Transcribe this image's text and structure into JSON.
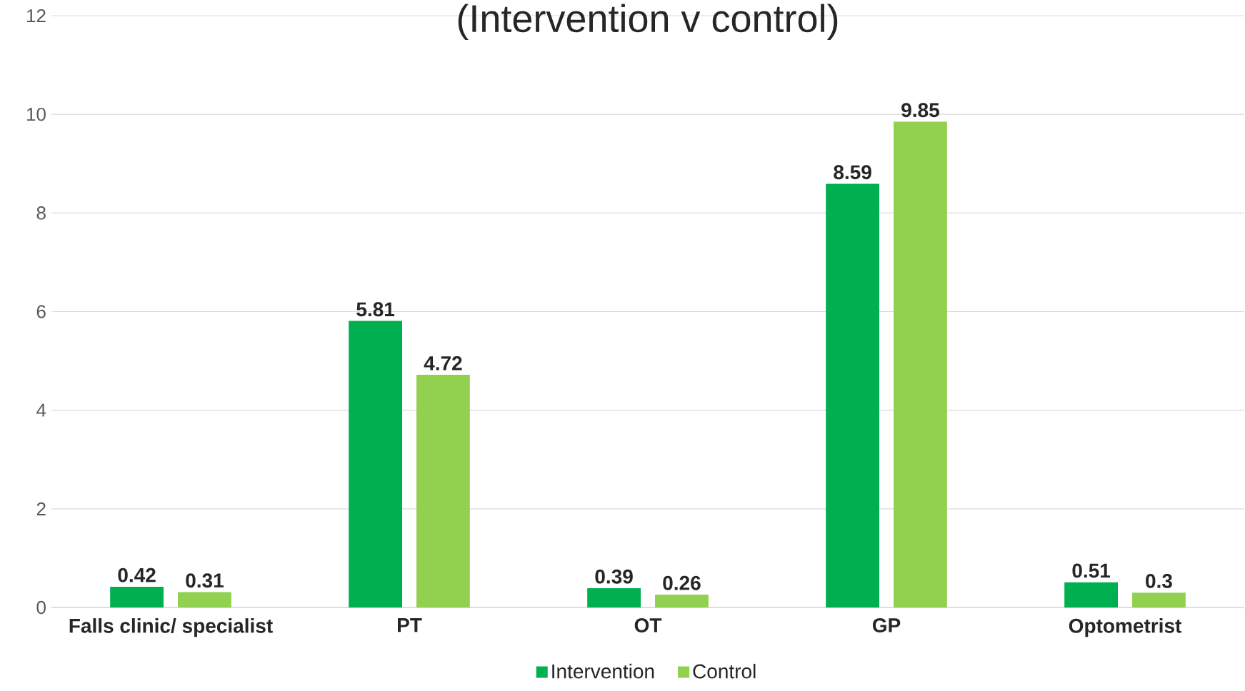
{
  "chart_data": {
    "type": "bar",
    "title": "(Intervention v control)",
    "categories": [
      "Falls clinic/ specialist",
      "PT",
      "OT",
      "GP",
      "Optometrist"
    ],
    "series": [
      {
        "name": "Intervention",
        "color": "#00b050",
        "values": [
          0.42,
          5.81,
          0.39,
          8.59,
          0.51
        ]
      },
      {
        "name": "Control",
        "color": "#92d050",
        "values": [
          0.31,
          4.72,
          0.26,
          9.85,
          0.3
        ]
      }
    ],
    "ylim": [
      0,
      12
    ],
    "yticks": [
      0,
      2,
      4,
      6,
      8,
      10,
      12
    ],
    "grid": "y",
    "legend": "bottom",
    "data_labels": true
  }
}
